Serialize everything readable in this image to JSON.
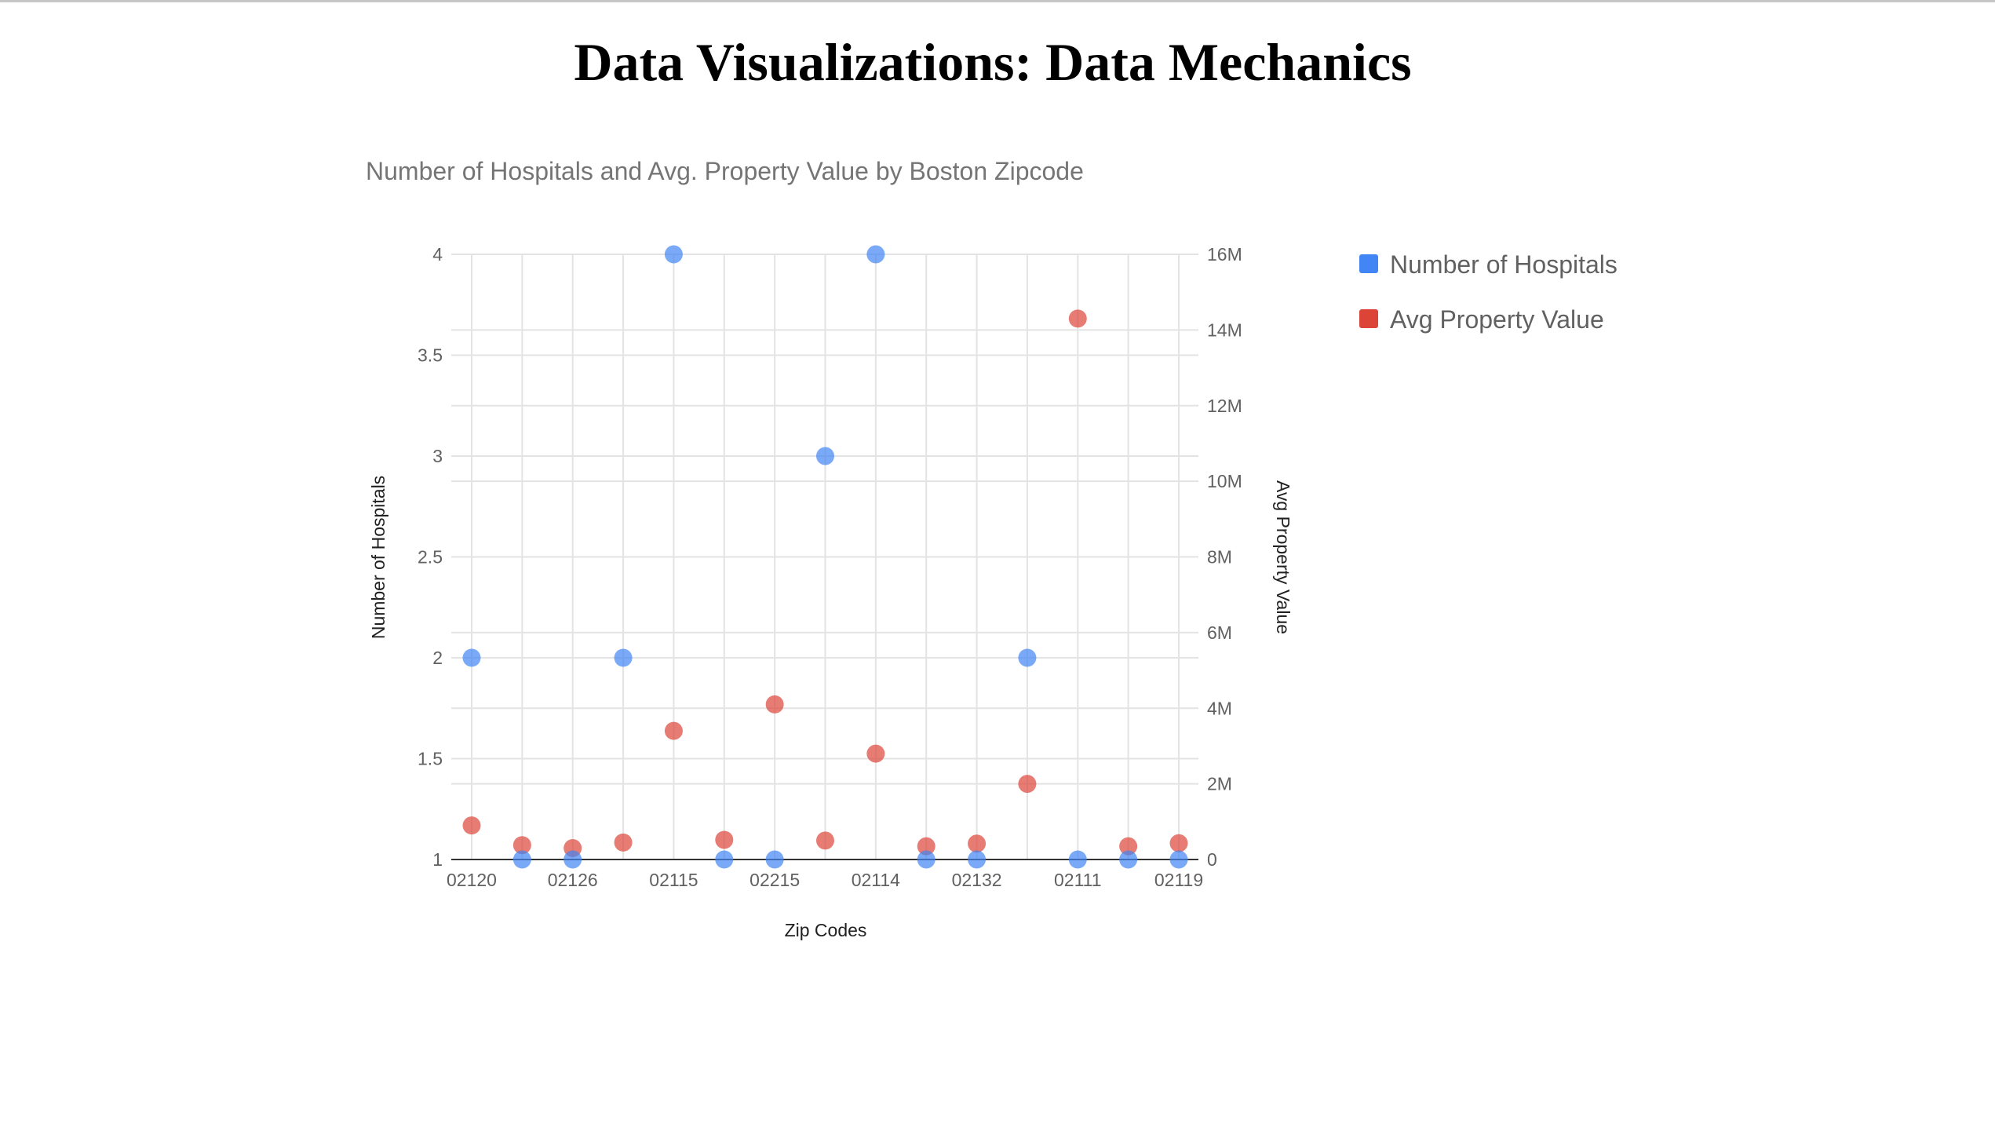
{
  "page": {
    "title": "Data Visualizations: Data Mechanics"
  },
  "chart_data": {
    "type": "scatter",
    "title": "Number of Hospitals and Avg. Property Value by Boston Zipcode",
    "xlabel": "Zip Codes",
    "ylabel": "Number of Hospitals",
    "y2label": "Avg Property Value",
    "categories": [
      "02120",
      "",
      "02126",
      "",
      "02115",
      "",
      "02215",
      "",
      "02114",
      "",
      "02132",
      "",
      "02111",
      "",
      "02119"
    ],
    "ylim": [
      1,
      4
    ],
    "yticks": [
      1,
      1.5,
      2,
      2.5,
      3,
      3.5,
      4
    ],
    "ytick_labels": [
      "1",
      "1.5",
      "2",
      "2.5",
      "3",
      "3.5",
      "4"
    ],
    "y2lim": [
      0,
      16000000
    ],
    "y2ticks": [
      0,
      2000000,
      4000000,
      6000000,
      8000000,
      10000000,
      12000000,
      14000000,
      16000000
    ],
    "y2tick_labels": [
      "0",
      "2M",
      "4M",
      "6M",
      "8M",
      "10M",
      "12M",
      "14M",
      "16M"
    ],
    "grid": true,
    "legend_position": "right",
    "series": [
      {
        "name": "Number of Hospitals",
        "axis": "left",
        "color": "#4285f4",
        "values": [
          2,
          1,
          1,
          2,
          4,
          1,
          1,
          3,
          4,
          1,
          1,
          2,
          1,
          1,
          1
        ]
      },
      {
        "name": "Avg Property Value",
        "axis": "right",
        "color": "#db4437",
        "values": [
          900000,
          380000,
          300000,
          450000,
          3400000,
          520000,
          4100000,
          500000,
          2800000,
          350000,
          420000,
          2000000,
          14300000,
          350000,
          430000
        ]
      }
    ]
  }
}
